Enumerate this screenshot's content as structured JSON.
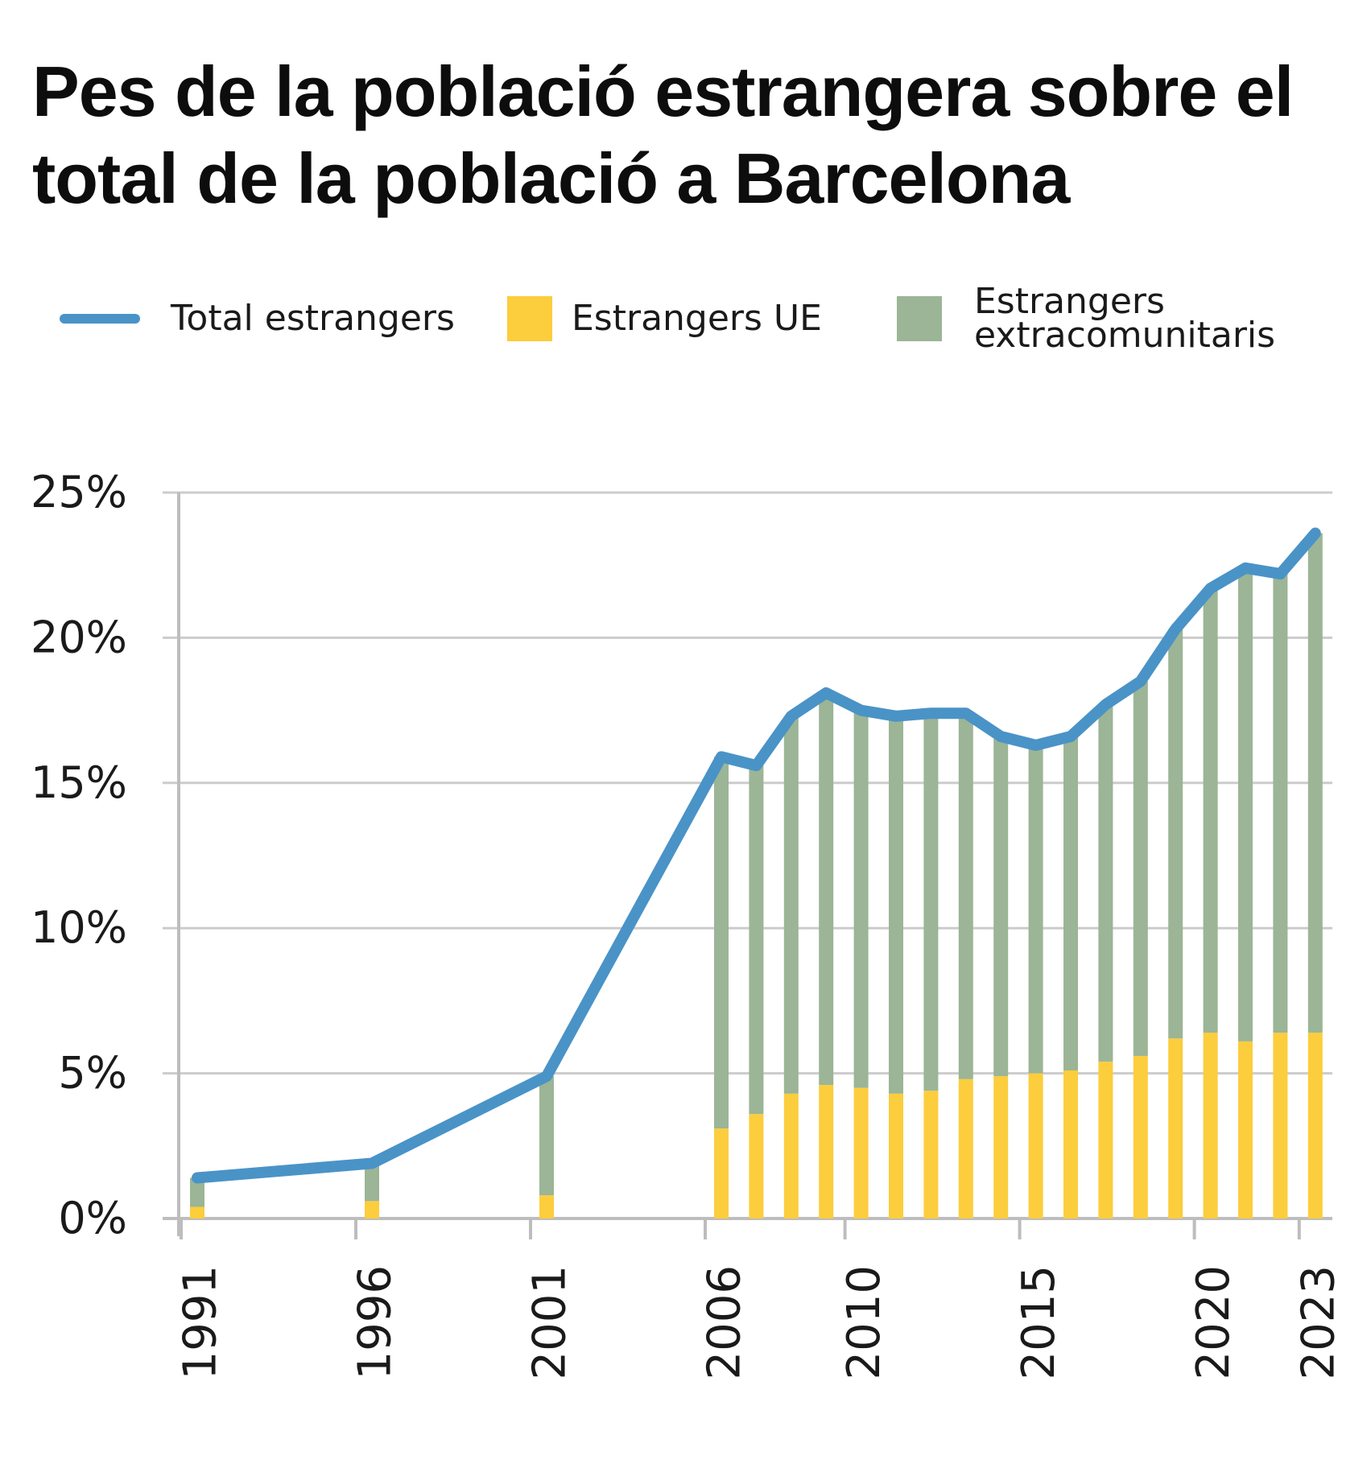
{
  "chart_data": {
    "type": "bar",
    "title": "Pes de la població estrangera sobre el total de la població a Barcelona",
    "xlabel": "",
    "ylabel": "",
    "ylim": [
      0,
      25
    ],
    "ytick_values": [
      0,
      5,
      10,
      15,
      20,
      25
    ],
    "ytick_labels": [
      "0%",
      "5%",
      "10%",
      "15%",
      "20%",
      "25%"
    ],
    "xtick_years": [
      1991,
      1996,
      2001,
      2006,
      2010,
      2015,
      2020,
      2023
    ],
    "xtick_labels": [
      "1991",
      "1996",
      "2001",
      "2006",
      "2010",
      "2015",
      "2020",
      "2023"
    ],
    "grid": true,
    "legend_position": "top",
    "years": [
      1991,
      1996,
      2001,
      2006,
      2007,
      2008,
      2009,
      2010,
      2011,
      2012,
      2013,
      2014,
      2015,
      2016,
      2017,
      2018,
      2019,
      2020,
      2021,
      2022,
      2023
    ],
    "series": [
      {
        "name": "Total estrangers",
        "kind": "line",
        "color": "#4a93c7",
        "values": [
          1.4,
          1.9,
          4.9,
          15.9,
          15.6,
          17.3,
          18.1,
          17.5,
          17.3,
          17.4,
          17.4,
          16.6,
          16.3,
          16.6,
          17.7,
          18.5,
          20.3,
          21.7,
          22.4,
          22.2,
          23.6
        ]
      },
      {
        "name": "Estrangers UE",
        "kind": "stacked-bar",
        "color": "#fccd3c",
        "values": [
          0.4,
          0.6,
          0.8,
          3.1,
          3.6,
          4.3,
          4.6,
          4.5,
          4.3,
          4.4,
          4.8,
          4.9,
          5.0,
          5.1,
          5.4,
          5.6,
          6.2,
          6.4,
          6.1,
          6.4,
          6.4
        ]
      },
      {
        "name": "Estrangers extracomunitaris",
        "kind": "stacked-bar",
        "color": "#9bb596",
        "values": [
          1.0,
          1.3,
          4.1,
          12.8,
          12.0,
          13.0,
          13.5,
          13.0,
          13.0,
          13.0,
          12.6,
          11.7,
          11.3,
          11.5,
          12.3,
          12.9,
          14.1,
          15.3,
          16.3,
          15.8,
          17.2
        ]
      }
    ]
  },
  "colors": {
    "grid": "#cccccc",
    "axis": "#bdbdbd"
  }
}
